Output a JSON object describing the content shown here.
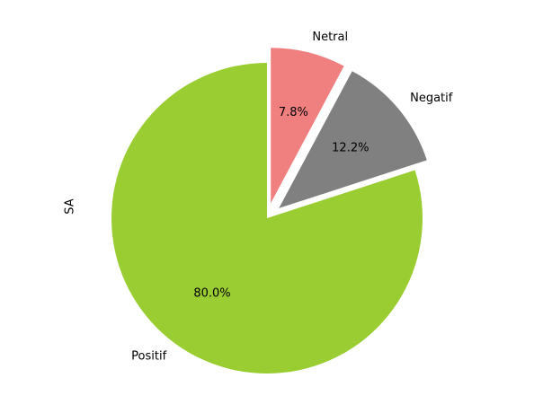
{
  "chart_data": {
    "type": "pie",
    "title": "",
    "ylabel": "SA",
    "start_angle_deg": 90,
    "direction": "counterclockwise",
    "slices": [
      {
        "label": "Positif",
        "percent": 80.0,
        "percent_label": "80.0%",
        "color": "#9acd32",
        "exploded": false
      },
      {
        "label": "Negatif",
        "percent": 12.2,
        "percent_label": "12.2%",
        "color": "#808080",
        "exploded": true
      },
      {
        "label": "Netral",
        "percent": 7.8,
        "percent_label": "7.8%",
        "color": "#f08080",
        "exploded": true
      }
    ]
  }
}
